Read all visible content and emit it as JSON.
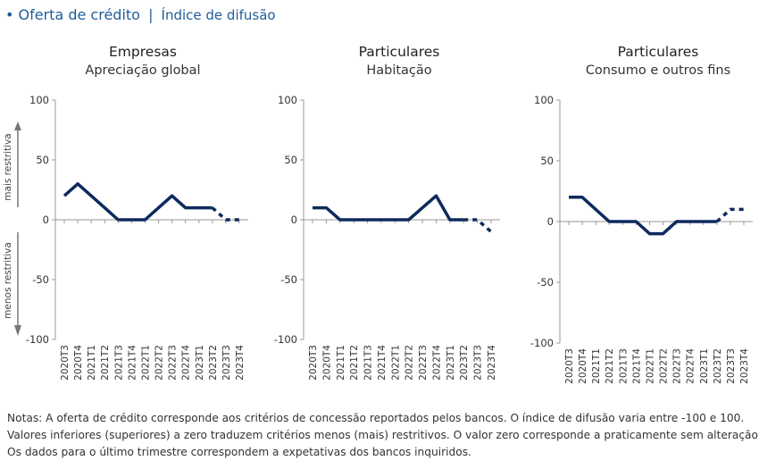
{
  "header": {
    "bullet": "•",
    "title": "Oferta de crédito",
    "separator": "|",
    "subtitle": "Índice de difusão"
  },
  "colors": {
    "line": "#0d2a5e",
    "accent": "#1f5c99",
    "axis": "#999999"
  },
  "side_labels": {
    "up": "mais restritiva",
    "down": "menos restritiva"
  },
  "chart_data": [
    {
      "type": "line",
      "title": "Empresas",
      "subtitle": "Apreciação global",
      "categories": [
        "2020T3",
        "2020T4",
        "2021T1",
        "2021T2",
        "2021T3",
        "2021T4",
        "2022T1",
        "2022T2",
        "2022T3",
        "2022T4",
        "2023T1",
        "2023T2",
        "2023T3",
        "2023T4"
      ],
      "values": [
        20,
        30,
        20,
        10,
        0,
        0,
        0,
        10,
        20,
        10,
        10,
        10,
        0,
        0
      ],
      "dashed_from_index": 12,
      "ylim": [
        -100,
        100
      ],
      "yticks": [
        "100",
        "50",
        "0",
        "-50",
        "-100"
      ],
      "ytick_values": [
        100,
        50,
        0,
        -50,
        -100
      ]
    },
    {
      "type": "line",
      "title": "Particulares",
      "subtitle": "Habitação",
      "categories": [
        "2020T3",
        "2020T4",
        "2021T1",
        "2021T2",
        "2021T3",
        "2021T4",
        "2022T1",
        "2022T2",
        "2022T3",
        "2022T4",
        "2023T1",
        "2023T2",
        "2023T3",
        "2023T4"
      ],
      "values": [
        10,
        10,
        0,
        0,
        0,
        0,
        0,
        0,
        10,
        20,
        0,
        0,
        0,
        -10
      ],
      "dashed_from_index": 12,
      "ylim": [
        -100,
        100
      ],
      "yticks": [
        "100",
        "50",
        "0",
        "-50",
        "-100"
      ],
      "ytick_values": [
        100,
        50,
        0,
        -50,
        -100
      ]
    },
    {
      "type": "line",
      "title": "Particulares",
      "subtitle": "Consumo e outros fins",
      "categories": [
        "2020T3",
        "2020T4",
        "2021T1",
        "2021T2",
        "2021T3",
        "2021T4",
        "2022T1",
        "2022T2",
        "2022T3",
        "2022T4",
        "2023T1",
        "2023T2",
        "2023T3",
        "2023T4"
      ],
      "values": [
        20,
        20,
        10,
        0,
        0,
        0,
        -10,
        -10,
        0,
        0,
        0,
        0,
        10,
        10
      ],
      "dashed_from_index": 12,
      "ylim": [
        -100,
        100
      ],
      "yticks": [
        "100",
        "50",
        "0",
        "-50",
        "-100"
      ],
      "ytick_values": [
        100,
        50,
        0,
        -50,
        -100
      ]
    }
  ],
  "notes": [
    "Notas: A oferta de crédito corresponde aos critérios de concessão reportados pelos bancos. O índice de difusão varia entre -100 e 100.",
    "Valores inferiores (superiores) a zero traduzem critérios menos (mais) restritivos. O valor zero corresponde a praticamente sem alteração.",
    "Os dados para o último trimestre correspondem a expetativas dos bancos inquiridos."
  ]
}
